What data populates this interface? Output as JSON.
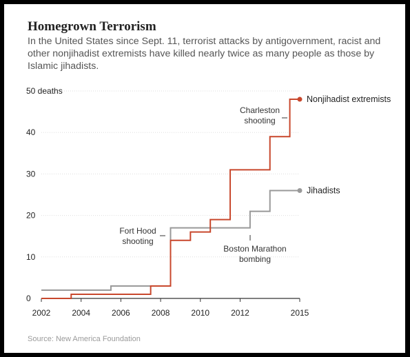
{
  "chart_data": {
    "type": "line",
    "title": "Homegrown Terrorism",
    "subtitle": "In the United States since Sept. 11, terrorist attacks by antigovernment, racist and other nonjihadist extremists have killed nearly twice as many people as those by Islamic jihadists.",
    "source": "Source: New America Foundation",
    "xlabel": "",
    "ylabel": "",
    "xlim": [
      2002,
      2015
    ],
    "ylim": [
      0,
      50
    ],
    "x_ticks": [
      2002,
      2004,
      2006,
      2008,
      2010,
      2012,
      2015
    ],
    "y_ticks": [
      0,
      10,
      20,
      30,
      40,
      50
    ],
    "y_top_label": "50 deaths",
    "grid": true,
    "step": true,
    "series": [
      {
        "name": "Nonjihadist extremists",
        "color": "#c8472c",
        "points": [
          [
            2002.0,
            0
          ],
          [
            2003.5,
            1
          ],
          [
            2007.5,
            3
          ],
          [
            2008.5,
            14
          ],
          [
            2009.5,
            16
          ],
          [
            2010.5,
            19
          ],
          [
            2011.5,
            31
          ],
          [
            2013.5,
            39
          ],
          [
            2014.5,
            48
          ],
          [
            2015.0,
            48
          ]
        ]
      },
      {
        "name": "Jihadists",
        "color": "#999999",
        "points": [
          [
            2002.0,
            2
          ],
          [
            2005.5,
            3
          ],
          [
            2008.5,
            17
          ],
          [
            2012.5,
            21
          ],
          [
            2013.5,
            26
          ],
          [
            2015.0,
            26
          ]
        ]
      }
    ],
    "annotations": [
      {
        "lines": [
          "Fort Hood",
          "shooting"
        ],
        "x": 2008.5,
        "y": 15
      },
      {
        "lines": [
          "Boston Marathon",
          "bombing"
        ],
        "x": 2012.5,
        "y": 12
      },
      {
        "lines": [
          "Charleston",
          "shooting"
        ],
        "x": 2014.0,
        "y": 43
      }
    ]
  }
}
